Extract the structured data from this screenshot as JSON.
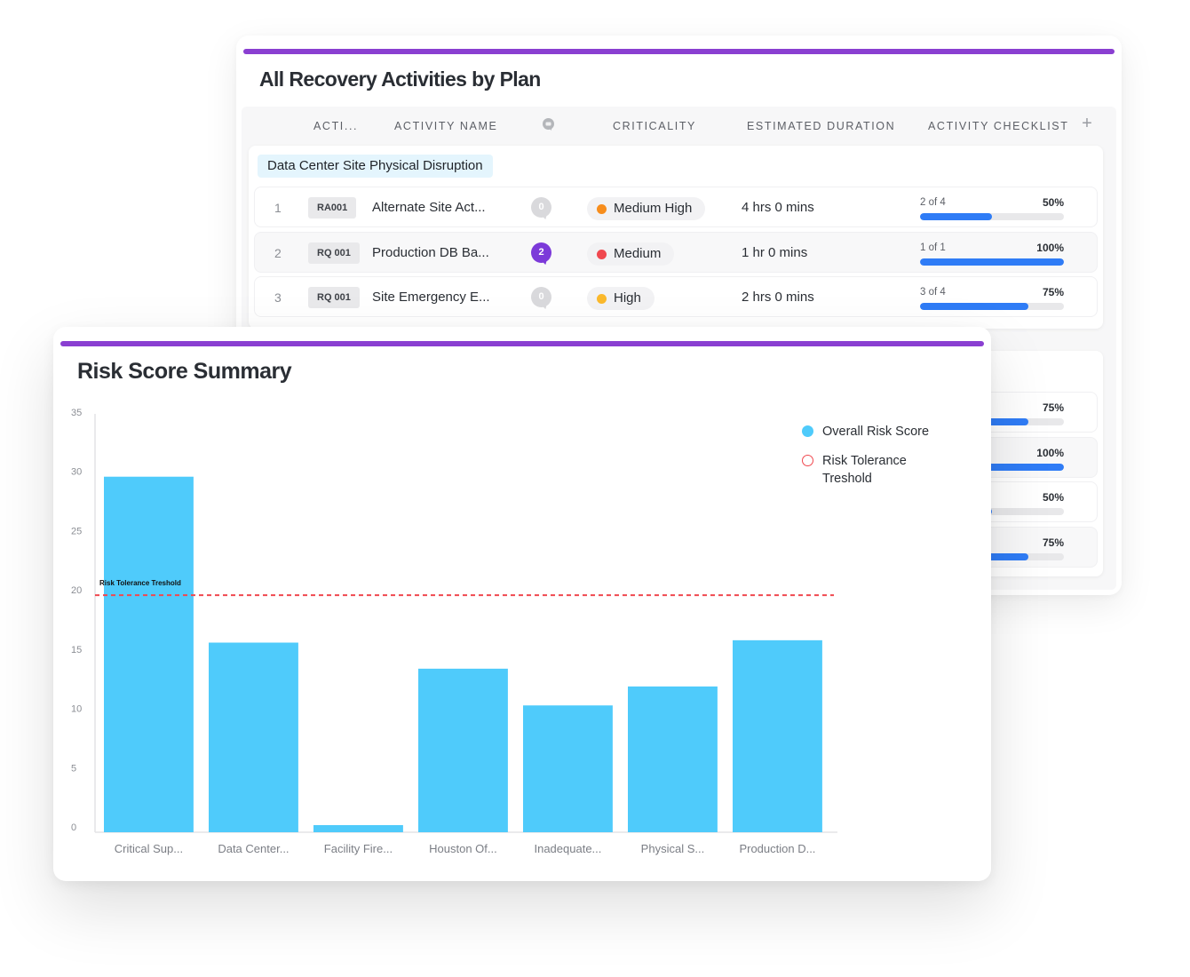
{
  "theme": {
    "accent": "#8a3fd1",
    "bar_color": "#4fcbfb",
    "threshold_color": "#f0484f",
    "progress_color": "#2f7cf6",
    "comment_active": "#7c3ad9",
    "comment_inactive": "#d9d9dc"
  },
  "recovery": {
    "title": "All Recovery Activities by Plan",
    "columns": {
      "id": "ACTI...",
      "name": "ACTIVITY NAME",
      "comments_icon": "comment-icon",
      "criticality": "CRITICALITY",
      "duration": "ESTIMATED DURATION",
      "checklist": "ACTIVITY CHECKLIST",
      "add": "+"
    },
    "group_name": "Data Center Site Physical Disruption",
    "rows": [
      {
        "num": "1",
        "id": "RA001",
        "name": "Alternate Site Act...",
        "comments": "0",
        "criticality": "Medium High",
        "crit_color": "#f78d1c",
        "duration": "4 hrs 0 mins",
        "check_text": "2 of 4",
        "check_pct": "50%",
        "progress": 0.5
      },
      {
        "num": "2",
        "id": "RQ 001",
        "name": "Production DB Ba...",
        "comments": "2",
        "criticality": "Medium",
        "crit_color": "#f0484f",
        "duration": "1 hr 0 mins",
        "check_text": "1 of 1",
        "check_pct": "100%",
        "progress": 1.0
      },
      {
        "num": "3",
        "id": "RQ 001",
        "name": "Site Emergency E...",
        "comments": "0",
        "criticality": "High",
        "crit_color": "#fbb92c",
        "duration": "2 hrs 0 mins",
        "check_text": "3 of 4",
        "check_pct": "75%",
        "progress": 0.75
      }
    ],
    "hidden_group_rows": [
      {
        "check_pct": "75%",
        "progress": 0.75
      },
      {
        "check_pct": "100%",
        "progress": 1.0
      },
      {
        "check_pct": "50%",
        "progress": 0.5
      },
      {
        "check_pct": "75%",
        "progress": 0.75
      }
    ]
  },
  "risk": {
    "title": "Risk Score Summary",
    "legend": [
      {
        "label": "Overall Risk Score",
        "style": "filled"
      },
      {
        "label": "Risk Tolerance Treshold",
        "style": "outline"
      }
    ]
  },
  "chart_data": {
    "type": "bar",
    "title": "Risk Score Summary",
    "xlabel": "",
    "ylabel": "",
    "categories": [
      "Critical Sup...",
      "Data Center...",
      "Facility Fire...",
      "Houston Of...",
      "Inadequate...",
      "Physical S...",
      "Production D..."
    ],
    "series": [
      {
        "name": "Overall Risk Score",
        "values": [
          30,
          16,
          0.6,
          13.8,
          10.7,
          12.3,
          16.2
        ]
      }
    ],
    "threshold": {
      "name": "Risk Tolerance Treshold",
      "value": 20,
      "label": "Risk Tolerance Treshold"
    },
    "ylim": [
      0,
      35
    ],
    "yticks": [
      0,
      5,
      10,
      15,
      20,
      25,
      30,
      35
    ],
    "grid": false,
    "legend_position": "top-right"
  }
}
